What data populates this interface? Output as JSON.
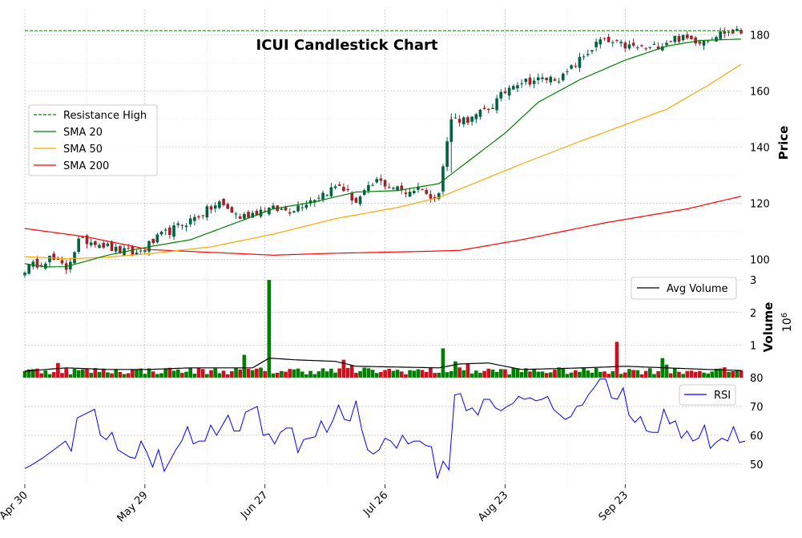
{
  "chart_data": {
    "type": "candlestick",
    "title": "ICUI Candlestick Chart",
    "x_ticks": [
      {
        "label": "Apr 30",
        "index": 0
      },
      {
        "label": "May 29",
        "index": 29
      },
      {
        "label": "Jun 27",
        "index": 58
      },
      {
        "label": "Jul 26",
        "index": 87
      },
      {
        "label": "Aug 23",
        "index": 116
      },
      {
        "label": "Sep 23",
        "index": 145
      }
    ],
    "n_points": 174,
    "price_panel": {
      "ylabel": "Price",
      "ylim": [
        95,
        189
      ],
      "yticks": [
        100,
        120,
        140,
        160,
        180
      ],
      "resistance_high": 181.5,
      "legend": {
        "position": "upper-left",
        "entries": [
          {
            "label": "Resistance High",
            "color": "#008000",
            "style": "dashed"
          },
          {
            "label": "SMA 20",
            "color": "#008000",
            "style": "solid"
          },
          {
            "label": "SMA 50",
            "color": "#FFA500",
            "style": "solid"
          },
          {
            "label": "SMA 200",
            "color": "#FF0000",
            "style": "solid"
          }
        ]
      },
      "close_anchors": [
        [
          0,
          96.5
        ],
        [
          6,
          100.5
        ],
        [
          10,
          96.8
        ],
        [
          13,
          106.5
        ],
        [
          17,
          106.5
        ],
        [
          22,
          103.2
        ],
        [
          27,
          102
        ],
        [
          33,
          108.5
        ],
        [
          40,
          114
        ],
        [
          47,
          120
        ],
        [
          52,
          115
        ],
        [
          58,
          118
        ],
        [
          64,
          117.5
        ],
        [
          70,
          122
        ],
        [
          76,
          126.5
        ],
        [
          80,
          120.5
        ],
        [
          85,
          128
        ],
        [
          92,
          124
        ],
        [
          96,
          126
        ],
        [
          98,
          121
        ],
        [
          100,
          125
        ],
        [
          103,
          150
        ],
        [
          108,
          150
        ],
        [
          113,
          155
        ],
        [
          118,
          163
        ],
        [
          124,
          164
        ],
        [
          130,
          165
        ],
        [
          134,
          171
        ],
        [
          139,
          178
        ],
        [
          145,
          176
        ],
        [
          151,
          175
        ],
        [
          157,
          179
        ],
        [
          163,
          178
        ],
        [
          169,
          181
        ],
        [
          173,
          181
        ]
      ],
      "sma20_anchors": [
        [
          0,
          98.5
        ],
        [
          5,
          97.3
        ],
        [
          10,
          97.4
        ],
        [
          20,
          101.5
        ],
        [
          30,
          104.5
        ],
        [
          40,
          107
        ],
        [
          50,
          112.5
        ],
        [
          60,
          118
        ],
        [
          70,
          120.5
        ],
        [
          80,
          124
        ],
        [
          90,
          124.5
        ],
        [
          100,
          127
        ],
        [
          108,
          136
        ],
        [
          116,
          145
        ],
        [
          124,
          156
        ],
        [
          134,
          164
        ],
        [
          145,
          171
        ],
        [
          155,
          176
        ],
        [
          163,
          178
        ],
        [
          173,
          178.5
        ]
      ],
      "sma50_anchors": [
        [
          0,
          101
        ],
        [
          10,
          100.2
        ],
        [
          20,
          100.8
        ],
        [
          30,
          102
        ],
        [
          45,
          104.5
        ],
        [
          60,
          109
        ],
        [
          75,
          114.5
        ],
        [
          90,
          118.5
        ],
        [
          100,
          122
        ],
        [
          110,
          128
        ],
        [
          120,
          134
        ],
        [
          134,
          142
        ],
        [
          145,
          148
        ],
        [
          155,
          153.5
        ],
        [
          165,
          162
        ],
        [
          173,
          169.5
        ]
      ],
      "sma200_anchors": [
        [
          0,
          111
        ],
        [
          15,
          108
        ],
        [
          30,
          103.5
        ],
        [
          45,
          102.5
        ],
        [
          60,
          101.5
        ],
        [
          75,
          102.2
        ],
        [
          95,
          102.8
        ],
        [
          105,
          103.2
        ],
        [
          120,
          107
        ],
        [
          140,
          113
        ],
        [
          160,
          118
        ],
        [
          173,
          122.5
        ]
      ]
    },
    "volume_panel": {
      "ylabel": "Volume",
      "unit_label": "10^6",
      "ylim": [
        0,
        3.2
      ],
      "yticks": [
        1,
        2,
        3
      ],
      "legend": {
        "position": "upper-right",
        "entries": [
          {
            "label": "Avg Volume",
            "color": "#000000"
          }
        ]
      },
      "spikes": [
        [
          8,
          0.45
        ],
        [
          34,
          0.28
        ],
        [
          53,
          0.7
        ],
        [
          59,
          3.0
        ],
        [
          77,
          0.55
        ],
        [
          79,
          0.38
        ],
        [
          101,
          0.9
        ],
        [
          104,
          0.5
        ],
        [
          107,
          0.42
        ],
        [
          143,
          1.1
        ],
        [
          154,
          0.6
        ],
        [
          155,
          0.4
        ]
      ],
      "avg_anchors": [
        [
          0,
          0.2
        ],
        [
          10,
          0.3
        ],
        [
          20,
          0.25
        ],
        [
          30,
          0.25
        ],
        [
          40,
          0.3
        ],
        [
          55,
          0.3
        ],
        [
          59,
          0.6
        ],
        [
          65,
          0.55
        ],
        [
          75,
          0.5
        ],
        [
          80,
          0.35
        ],
        [
          100,
          0.3
        ],
        [
          105,
          0.42
        ],
        [
          112,
          0.45
        ],
        [
          120,
          0.25
        ],
        [
          135,
          0.3
        ],
        [
          145,
          0.35
        ],
        [
          155,
          0.3
        ],
        [
          165,
          0.25
        ],
        [
          173,
          0.22
        ]
      ]
    },
    "rsi_panel": {
      "ylabel": "",
      "ylim": [
        43,
        80
      ],
      "yticks": [
        50,
        60,
        70,
        80
      ],
      "legend": {
        "position": "upper-right",
        "entries": [
          {
            "label": "RSI",
            "color": "#0000FF"
          }
        ]
      },
      "anchors": [
        [
          0,
          48.5
        ],
        [
          1,
          49.5
        ],
        [
          3,
          52
        ],
        [
          5,
          55
        ],
        [
          7,
          58
        ],
        [
          8,
          54.5
        ],
        [
          9,
          66
        ],
        [
          10,
          67
        ],
        [
          12,
          69
        ],
        [
          13,
          60
        ],
        [
          14,
          58.5
        ],
        [
          15,
          61
        ],
        [
          16,
          55
        ],
        [
          18,
          52.5
        ],
        [
          19,
          52
        ],
        [
          20,
          58
        ],
        [
          21,
          54
        ],
        [
          22,
          49
        ],
        [
          23,
          55
        ],
        [
          24,
          47.5
        ],
        [
          26,
          55
        ],
        [
          27,
          58
        ],
        [
          28,
          63
        ],
        [
          29,
          57
        ],
        [
          30,
          58
        ],
        [
          31,
          58
        ],
        [
          32,
          63.5
        ],
        [
          33,
          60
        ],
        [
          35,
          67
        ],
        [
          36,
          61.5
        ],
        [
          37,
          61.5
        ],
        [
          38,
          68
        ],
        [
          40,
          70
        ],
        [
          41,
          60
        ],
        [
          42,
          60.5
        ],
        [
          43,
          57
        ],
        [
          44,
          61
        ],
        [
          45,
          62.5
        ],
        [
          46,
          62.5
        ],
        [
          47,
          54
        ],
        [
          48,
          58.5
        ],
        [
          50,
          59.5
        ],
        [
          51,
          65
        ],
        [
          52,
          61
        ],
        [
          53,
          65
        ],
        [
          54,
          70.5
        ],
        [
          55,
          65.5
        ],
        [
          56,
          65
        ],
        [
          57,
          72
        ],
        [
          58,
          62
        ],
        [
          59,
          55
        ],
        [
          60,
          53.5
        ],
        [
          61,
          55
        ],
        [
          62,
          59
        ],
        [
          63,
          58
        ],
        [
          64,
          55.5
        ],
        [
          65,
          60
        ],
        [
          66,
          57
        ],
        [
          67,
          58
        ],
        [
          68,
          58
        ],
        [
          69,
          56.5
        ],
        [
          70,
          56
        ],
        [
          71,
          45
        ],
        [
          72,
          51
        ],
        [
          73,
          48
        ],
        [
          74,
          74
        ],
        [
          75,
          74.5
        ],
        [
          76,
          68.5
        ],
        [
          77,
          69.5
        ],
        [
          78,
          67
        ],
        [
          79,
          72.5
        ],
        [
          80,
          72.5
        ],
        [
          81,
          69.5
        ],
        [
          82,
          68.5
        ],
        [
          83,
          70
        ],
        [
          84,
          71
        ],
        [
          85,
          73.5
        ],
        [
          86,
          72.5
        ],
        [
          87,
          73
        ],
        [
          88,
          72
        ],
        [
          89,
          72.5
        ],
        [
          90,
          73.5
        ],
        [
          91,
          69
        ],
        [
          93,
          65.5
        ],
        [
          94,
          66.5
        ],
        [
          95,
          70
        ],
        [
          96,
          70.5
        ],
        [
          97,
          74
        ],
        [
          98,
          76.5
        ],
        [
          99,
          79.5
        ],
        [
          100,
          79.5
        ],
        [
          101,
          73
        ],
        [
          102,
          72.5
        ],
        [
          103,
          76.5
        ],
        [
          104,
          67
        ],
        [
          105,
          64.5
        ],
        [
          106,
          66.5
        ],
        [
          107,
          61.5
        ],
        [
          108,
          61
        ],
        [
          109,
          61
        ],
        [
          110,
          69
        ],
        [
          111,
          64
        ],
        [
          112,
          65
        ],
        [
          113,
          59
        ],
        [
          114,
          61.5
        ],
        [
          115,
          58
        ],
        [
          116,
          59
        ],
        [
          117,
          63.5
        ],
        [
          118,
          55.5
        ],
        [
          119,
          57.5
        ],
        [
          120,
          59
        ],
        [
          121,
          58
        ],
        [
          122,
          63
        ],
        [
          123,
          57.5
        ],
        [
          124,
          58
        ]
      ],
      "rsi_index_scale": 1.403
    }
  }
}
